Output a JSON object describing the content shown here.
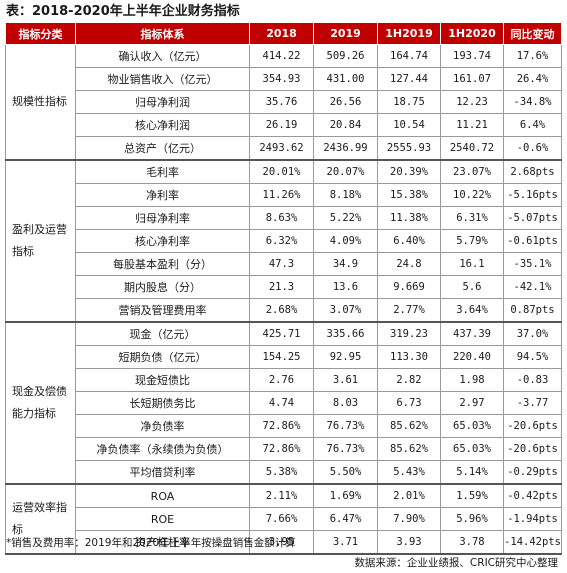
{
  "title": "表：2018-2020年上半年企业财务指标",
  "headers": [
    "指标分类",
    "指标体系",
    "2018",
    "2019",
    "1H2019",
    "1H2020",
    "同比变动"
  ],
  "groups": [
    {
      "category": "规模性指标",
      "rows": [
        {
          "metric": "确认收入（亿元）",
          "v2018": "414.22",
          "v2019": "509.26",
          "h2019": "164.74",
          "h2020": "193.74",
          "yoy": "17.6%"
        },
        {
          "metric": "物业销售收入（亿元）",
          "v2018": "354.93",
          "v2019": "431.00",
          "h2019": "127.44",
          "h2020": "161.07",
          "yoy": "26.4%"
        },
        {
          "metric": "归母净利润",
          "v2018": "35.76",
          "v2019": "26.56",
          "h2019": "18.75",
          "h2020": "12.23",
          "yoy": "-34.8%"
        },
        {
          "metric": "核心净利润",
          "v2018": "26.19",
          "v2019": "20.84",
          "h2019": "10.54",
          "h2020": "11.21",
          "yoy": "6.4%"
        },
        {
          "metric": "总资产（亿元）",
          "v2018": "2493.62",
          "v2019": "2436.99",
          "h2019": "2555.93",
          "h2020": "2540.72",
          "yoy": "-0.6%"
        }
      ]
    },
    {
      "category": "盈利及运营指标",
      "rows": [
        {
          "metric": "毛利率",
          "v2018": "20.01%",
          "v2019": "20.07%",
          "h2019": "20.39%",
          "h2020": "23.07%",
          "yoy": "2.68pts"
        },
        {
          "metric": "净利率",
          "v2018": "11.26%",
          "v2019": "8.18%",
          "h2019": "15.38%",
          "h2020": "10.22%",
          "yoy": "-5.16pts"
        },
        {
          "metric": "归母净利率",
          "v2018": "8.63%",
          "v2019": "5.22%",
          "h2019": "11.38%",
          "h2020": "6.31%",
          "yoy": "-5.07pts"
        },
        {
          "metric": "核心净利率",
          "v2018": "6.32%",
          "v2019": "4.09%",
          "h2019": "6.40%",
          "h2020": "5.79%",
          "yoy": "-0.61pts"
        },
        {
          "metric": "每股基本盈利（分）",
          "v2018": "47.3",
          "v2019": "34.9",
          "h2019": "24.8",
          "h2020": "16.1",
          "yoy": "-35.1%"
        },
        {
          "metric": "期内股息（分）",
          "v2018": "21.3",
          "v2019": "13.6",
          "h2019": "9.669",
          "h2020": "5.6",
          "yoy": "-42.1%"
        },
        {
          "metric": "营销及管理费用率",
          "v2018": "2.68%",
          "v2019": "3.07%",
          "h2019": "2.77%",
          "h2020": "3.64%",
          "yoy": "0.87pts"
        }
      ]
    },
    {
      "category": "现金及偿债能力指标",
      "rows": [
        {
          "metric": "现金（亿元）",
          "v2018": "425.71",
          "v2019": "335.66",
          "h2019": "319.23",
          "h2020": "437.39",
          "yoy": "37.0%"
        },
        {
          "metric": "短期负债（亿元）",
          "v2018": "154.25",
          "v2019": "92.95",
          "h2019": "113.30",
          "h2020": "220.40",
          "yoy": "94.5%"
        },
        {
          "metric": "现金短债比",
          "v2018": "2.76",
          "v2019": "3.61",
          "h2019": "2.82",
          "h2020": "1.98",
          "yoy": "-0.83"
        },
        {
          "metric": "长短期债务比",
          "v2018": "4.74",
          "v2019": "8.03",
          "h2019": "6.73",
          "h2020": "2.97",
          "yoy": "-3.77"
        },
        {
          "metric": "净负债率",
          "v2018": "72.86%",
          "v2019": "76.73%",
          "h2019": "85.62%",
          "h2020": "65.03%",
          "yoy": "-20.6pts"
        },
        {
          "metric": "净负债率（永续债为负债）",
          "v2018": "72.86%",
          "v2019": "76.73%",
          "h2019": "85.62%",
          "h2020": "65.03%",
          "yoy": "-20.6pts"
        },
        {
          "metric": "平均借贷利率",
          "v2018": "5.38%",
          "v2019": "5.50%",
          "h2019": "5.43%",
          "h2020": "5.14%",
          "yoy": "-0.29pts"
        }
      ]
    },
    {
      "category": "运营效率指标",
      "rows": [
        {
          "metric": "ROA",
          "v2018": "2.11%",
          "v2019": "1.69%",
          "h2019": "2.01%",
          "h2020": "1.59%",
          "yoy": "-0.42pts"
        },
        {
          "metric": "ROE",
          "v2018": "7.66%",
          "v2019": "6.47%",
          "h2019": "7.90%",
          "h2020": "5.96%",
          "yoy": "-1.94pts"
        },
        {
          "metric": "资产杠杆率",
          "v2018": "3.95",
          "v2019": "3.71",
          "h2019": "3.93",
          "h2020": "3.78",
          "yoy": "-14.42pts"
        }
      ]
    }
  ],
  "note": "*销售及费用率：2019年和2020年上半年按操盘销售金额计算",
  "source": "数据来源：企业业绩报、CRIC研究中心整理"
}
